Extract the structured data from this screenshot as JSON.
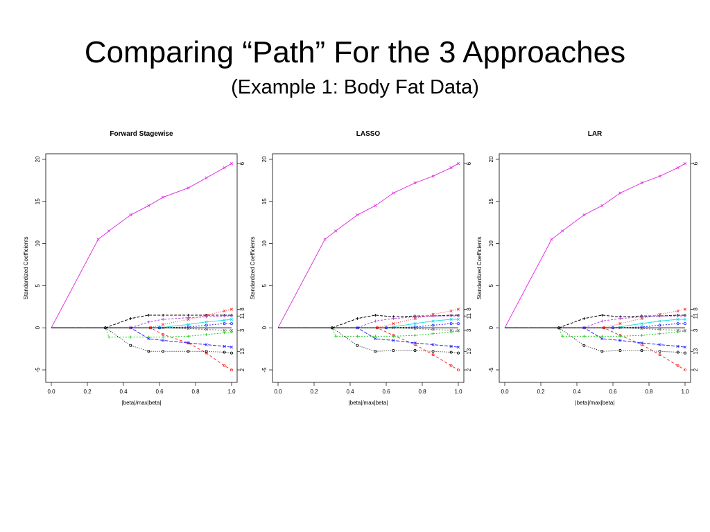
{
  "slide": {
    "title": "Comparing “Path” For the 3 Approaches",
    "subtitle": "(Example 1: Body Fat Data)"
  },
  "colors": {
    "magenta": "#e033e0",
    "black": "#000000",
    "red": "#ff2a2a",
    "green": "#22cc22",
    "blue": "#2a2aff",
    "cyan": "#22dddd",
    "grey": "#777777",
    "pink": "#ff55aa",
    "purple": "#aa44dd"
  },
  "chart_data": [
    {
      "type": "line",
      "title": "Forward Stagewise",
      "xlabel": "|beta|/max|beta|",
      "ylabel": "Standardized Coefficients",
      "xlim": [
        0.0,
        1.0
      ],
      "ylim": [
        -5,
        20
      ],
      "xticks": [
        "0.0",
        "0.2",
        "0.4",
        "0.6",
        "0.8",
        "1.0"
      ],
      "yticks": [
        "-5",
        "0",
        "5",
        "10",
        "15",
        "20"
      ],
      "right_labels": [
        {
          "label": "6",
          "y": 19.5
        },
        {
          "label": "8",
          "y": 2.2
        },
        {
          "label": "11",
          "y": 1.4
        },
        {
          "label": "3",
          "y": -0.3
        },
        {
          "label": "13",
          "y": -2.8
        },
        {
          "label": "2",
          "y": -5.0
        }
      ],
      "series": [
        {
          "color": "#e033e0",
          "dash": "",
          "x": [
            0.0,
            0.26,
            0.32,
            0.44,
            0.54,
            0.62,
            0.76,
            0.86,
            0.96,
            1.0
          ],
          "y": [
            0.0,
            10.5,
            11.5,
            13.4,
            14.5,
            15.5,
            16.6,
            17.8,
            19.0,
            19.5
          ]
        },
        {
          "color": "#000000",
          "dash": "4,2",
          "x": [
            0.0,
            0.3,
            0.44,
            0.54,
            0.62,
            0.76,
            0.86,
            0.96,
            1.0
          ],
          "y": [
            0.0,
            0.0,
            1.1,
            1.5,
            1.5,
            1.5,
            1.5,
            1.5,
            1.5
          ]
        },
        {
          "color": "#ff2a2a",
          "dash": "4,3",
          "x": [
            0.0,
            0.55,
            0.62,
            0.76,
            0.86,
            0.96,
            1.0
          ],
          "y": [
            0.0,
            0.0,
            -0.8,
            -1.8,
            -3.0,
            -4.5,
            -5.0
          ]
        },
        {
          "color": "#ff2a2a",
          "dash": "1,2",
          "x": [
            0.0,
            0.55,
            0.62,
            0.76,
            0.86,
            0.96,
            1.0
          ],
          "y": [
            0.0,
            0.0,
            0.4,
            1.0,
            1.5,
            2.0,
            2.2
          ]
        },
        {
          "color": "#22dddd",
          "dash": "",
          "x": [
            0.0,
            0.6,
            0.76,
            0.86,
            0.96,
            1.0
          ],
          "y": [
            0.0,
            0.0,
            0.4,
            0.7,
            0.9,
            1.0
          ]
        },
        {
          "color": "#22cc22",
          "dash": "2,2",
          "x": [
            0.0,
            0.3,
            0.32,
            0.44,
            0.54,
            0.62,
            0.76,
            0.86,
            0.96,
            1.0
          ],
          "y": [
            0.0,
            0.0,
            -1.1,
            -1.1,
            -1.1,
            -1.1,
            -1.0,
            -0.8,
            -0.6,
            -0.5
          ]
        },
        {
          "color": "#000000",
          "dash": "1,2",
          "x": [
            0.0,
            0.3,
            0.44,
            0.54,
            0.62,
            0.76,
            0.86,
            0.96,
            1.0
          ],
          "y": [
            0.0,
            0.0,
            -2.1,
            -2.8,
            -2.8,
            -2.8,
            -2.8,
            -2.9,
            -3.0
          ]
        },
        {
          "color": "#2a2aff",
          "dash": "5,2",
          "x": [
            0.0,
            0.44,
            0.54,
            0.62,
            0.76,
            0.86,
            0.96,
            1.0
          ],
          "y": [
            0.0,
            0.0,
            -1.3,
            -1.5,
            -1.8,
            -2.0,
            -2.2,
            -2.3
          ]
        },
        {
          "color": "#aa44dd",
          "dash": "3,2",
          "x": [
            0.0,
            0.44,
            0.54,
            0.62,
            0.76,
            0.86,
            0.96,
            1.0
          ],
          "y": [
            0.0,
            0.0,
            0.7,
            1.0,
            1.2,
            1.3,
            1.4,
            1.4
          ]
        },
        {
          "color": "#2a2aff",
          "dash": "2,2",
          "x": [
            0.0,
            0.6,
            0.76,
            0.86,
            0.96,
            1.0
          ],
          "y": [
            0.0,
            0.0,
            0.1,
            0.3,
            0.5,
            0.5
          ]
        },
        {
          "color": "#777777",
          "dash": "2,2",
          "x": [
            0.0,
            0.62,
            0.76,
            0.86,
            0.96,
            1.0
          ],
          "y": [
            0.0,
            0.0,
            -0.1,
            -0.2,
            -0.3,
            -0.3
          ]
        },
        {
          "color": "#000000",
          "dash": "",
          "x": [
            0.0,
            1.0
          ],
          "y": [
            0.0,
            0.0
          ]
        }
      ]
    },
    {
      "type": "line",
      "title": "LASSO",
      "xlabel": "|beta|/max|beta|",
      "ylabel": "Standardized Coefficients",
      "xlim": [
        0.0,
        1.0
      ],
      "ylim": [
        -5,
        20
      ],
      "xticks": [
        "0.0",
        "0.2",
        "0.4",
        "0.6",
        "0.8",
        "1.0"
      ],
      "yticks": [
        "-5",
        "0",
        "5",
        "10",
        "15",
        "20"
      ],
      "right_labels": [
        {
          "label": "6",
          "y": 19.5
        },
        {
          "label": "8",
          "y": 2.2
        },
        {
          "label": "11",
          "y": 1.4
        },
        {
          "label": "3",
          "y": -0.3
        },
        {
          "label": "13",
          "y": -2.8
        },
        {
          "label": "2",
          "y": -5.0
        }
      ],
      "series": [
        {
          "color": "#e033e0",
          "dash": "",
          "x": [
            0.0,
            0.26,
            0.32,
            0.44,
            0.54,
            0.64,
            0.76,
            0.86,
            0.96,
            1.0
          ],
          "y": [
            0.0,
            10.5,
            11.5,
            13.4,
            14.5,
            16.0,
            17.2,
            18.0,
            19.0,
            19.5
          ]
        },
        {
          "color": "#000000",
          "dash": "4,2",
          "x": [
            0.0,
            0.3,
            0.44,
            0.54,
            0.64,
            0.76,
            0.86,
            0.96,
            1.0
          ],
          "y": [
            0.0,
            0.0,
            1.1,
            1.5,
            1.3,
            1.4,
            1.4,
            1.5,
            1.5
          ]
        },
        {
          "color": "#ff2a2a",
          "dash": "4,3",
          "x": [
            0.0,
            0.55,
            0.64,
            0.76,
            0.86,
            0.96,
            1.0
          ],
          "y": [
            0.0,
            0.0,
            -0.9,
            -2.0,
            -3.2,
            -4.5,
            -5.0
          ]
        },
        {
          "color": "#ff2a2a",
          "dash": "1,2",
          "x": [
            0.0,
            0.55,
            0.64,
            0.76,
            0.86,
            0.96,
            1.0
          ],
          "y": [
            0.0,
            0.0,
            0.5,
            1.1,
            1.6,
            2.0,
            2.2
          ]
        },
        {
          "color": "#22dddd",
          "dash": "",
          "x": [
            0.0,
            0.6,
            0.76,
            0.86,
            0.96,
            1.0
          ],
          "y": [
            0.0,
            0.0,
            0.5,
            0.8,
            1.0,
            1.0
          ]
        },
        {
          "color": "#22cc22",
          "dash": "2,2",
          "x": [
            0.0,
            0.3,
            0.32,
            0.44,
            0.54,
            0.64,
            0.76,
            0.86,
            0.96,
            1.0
          ],
          "y": [
            0.0,
            0.0,
            -1.0,
            -1.0,
            -1.0,
            -1.0,
            -0.9,
            -0.7,
            -0.5,
            -0.4
          ]
        },
        {
          "color": "#000000",
          "dash": "1,2",
          "x": [
            0.0,
            0.3,
            0.44,
            0.54,
            0.64,
            0.76,
            0.86,
            0.96,
            1.0
          ],
          "y": [
            0.0,
            0.0,
            -2.1,
            -2.8,
            -2.7,
            -2.7,
            -2.8,
            -2.9,
            -3.0
          ]
        },
        {
          "color": "#2a2aff",
          "dash": "5,2",
          "x": [
            0.0,
            0.44,
            0.54,
            0.64,
            0.76,
            0.86,
            0.96,
            1.0
          ],
          "y": [
            0.0,
            0.0,
            -1.3,
            -1.5,
            -1.8,
            -2.0,
            -2.2,
            -2.3
          ]
        },
        {
          "color": "#aa44dd",
          "dash": "3,2",
          "x": [
            0.0,
            0.44,
            0.54,
            0.64,
            0.76,
            0.86,
            0.96,
            1.0
          ],
          "y": [
            0.0,
            0.0,
            0.8,
            1.1,
            1.3,
            1.4,
            1.4,
            1.4
          ]
        },
        {
          "color": "#2a2aff",
          "dash": "2,2",
          "x": [
            0.0,
            0.6,
            0.76,
            0.86,
            0.96,
            1.0
          ],
          "y": [
            0.0,
            0.0,
            0.1,
            0.3,
            0.5,
            0.5
          ]
        },
        {
          "color": "#777777",
          "dash": "2,2",
          "x": [
            0.0,
            0.64,
            0.76,
            0.86,
            0.96,
            1.0
          ],
          "y": [
            0.0,
            0.0,
            -0.1,
            -0.2,
            -0.3,
            -0.3
          ]
        },
        {
          "color": "#000000",
          "dash": "",
          "x": [
            0.0,
            1.0
          ],
          "y": [
            0.0,
            0.0
          ]
        }
      ]
    },
    {
      "type": "line",
      "title": "LAR",
      "xlabel": "|beta|/max|beta|",
      "ylabel": "Standardized Coefficients",
      "xlim": [
        0.0,
        1.0
      ],
      "ylim": [
        -5,
        20
      ],
      "xticks": [
        "0.0",
        "0.2",
        "0.4",
        "0.6",
        "0.8",
        "1.0"
      ],
      "yticks": [
        "-5",
        "0",
        "5",
        "10",
        "15",
        "20"
      ],
      "right_labels": [
        {
          "label": "6",
          "y": 19.5
        },
        {
          "label": "8",
          "y": 2.2
        },
        {
          "label": "11",
          "y": 1.4
        },
        {
          "label": "3",
          "y": -0.3
        },
        {
          "label": "13",
          "y": -2.8
        },
        {
          "label": "2",
          "y": -5.0
        }
      ],
      "series": [
        {
          "color": "#e033e0",
          "dash": "",
          "x": [
            0.0,
            0.26,
            0.32,
            0.44,
            0.54,
            0.64,
            0.76,
            0.86,
            0.96,
            1.0
          ],
          "y": [
            0.0,
            10.5,
            11.5,
            13.4,
            14.5,
            16.0,
            17.2,
            18.0,
            19.0,
            19.5
          ]
        },
        {
          "color": "#000000",
          "dash": "4,2",
          "x": [
            0.0,
            0.3,
            0.44,
            0.54,
            0.64,
            0.76,
            0.86,
            0.96,
            1.0
          ],
          "y": [
            0.0,
            0.0,
            1.1,
            1.5,
            1.3,
            1.4,
            1.4,
            1.5,
            1.5
          ]
        },
        {
          "color": "#ff2a2a",
          "dash": "4,3",
          "x": [
            0.0,
            0.55,
            0.64,
            0.76,
            0.86,
            0.96,
            1.0
          ],
          "y": [
            0.0,
            0.0,
            -0.9,
            -2.0,
            -3.2,
            -4.5,
            -5.0
          ]
        },
        {
          "color": "#ff2a2a",
          "dash": "1,2",
          "x": [
            0.0,
            0.55,
            0.64,
            0.76,
            0.86,
            0.96,
            1.0
          ],
          "y": [
            0.0,
            0.0,
            0.5,
            1.1,
            1.6,
            2.0,
            2.2
          ]
        },
        {
          "color": "#22dddd",
          "dash": "",
          "x": [
            0.0,
            0.6,
            0.76,
            0.86,
            0.96,
            1.0
          ],
          "y": [
            0.0,
            0.0,
            0.5,
            0.8,
            1.0,
            1.0
          ]
        },
        {
          "color": "#22cc22",
          "dash": "2,2",
          "x": [
            0.0,
            0.3,
            0.32,
            0.44,
            0.54,
            0.64,
            0.76,
            0.86,
            0.96,
            1.0
          ],
          "y": [
            0.0,
            0.0,
            -1.0,
            -1.0,
            -1.0,
            -1.0,
            -0.9,
            -0.7,
            -0.5,
            -0.4
          ]
        },
        {
          "color": "#000000",
          "dash": "1,2",
          "x": [
            0.0,
            0.3,
            0.44,
            0.54,
            0.64,
            0.76,
            0.86,
            0.96,
            1.0
          ],
          "y": [
            0.0,
            0.0,
            -2.1,
            -2.8,
            -2.7,
            -2.7,
            -2.8,
            -2.9,
            -3.0
          ]
        },
        {
          "color": "#2a2aff",
          "dash": "5,2",
          "x": [
            0.0,
            0.44,
            0.54,
            0.64,
            0.76,
            0.86,
            0.96,
            1.0
          ],
          "y": [
            0.0,
            0.0,
            -1.3,
            -1.5,
            -1.8,
            -2.0,
            -2.2,
            -2.3
          ]
        },
        {
          "color": "#aa44dd",
          "dash": "3,2",
          "x": [
            0.0,
            0.44,
            0.54,
            0.64,
            0.76,
            0.86,
            0.96,
            1.0
          ],
          "y": [
            0.0,
            0.0,
            0.8,
            1.1,
            1.3,
            1.4,
            1.4,
            1.4
          ]
        },
        {
          "color": "#2a2aff",
          "dash": "2,2",
          "x": [
            0.0,
            0.6,
            0.76,
            0.86,
            0.96,
            1.0
          ],
          "y": [
            0.0,
            0.0,
            0.1,
            0.3,
            0.5,
            0.5
          ]
        },
        {
          "color": "#777777",
          "dash": "2,2",
          "x": [
            0.0,
            0.64,
            0.76,
            0.86,
            0.96,
            1.0
          ],
          "y": [
            0.0,
            0.0,
            -0.1,
            -0.2,
            -0.3,
            -0.3
          ]
        },
        {
          "color": "#000000",
          "dash": "",
          "x": [
            0.0,
            1.0
          ],
          "y": [
            0.0,
            0.0
          ]
        }
      ]
    }
  ]
}
